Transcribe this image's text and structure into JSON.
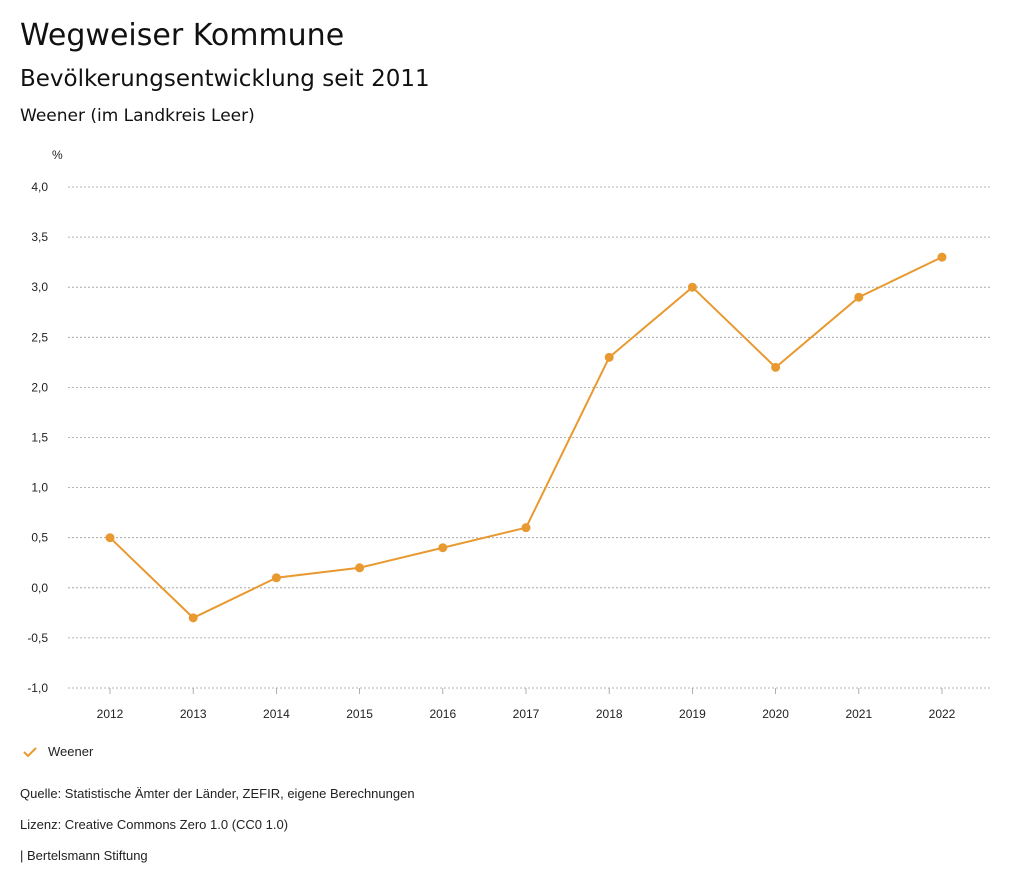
{
  "header": {
    "title": "Wegweiser Kommune",
    "subtitle": "Bevölkerungsentwicklung seit 2011",
    "region": "Weener (im Landkreis Leer)"
  },
  "chart_data": {
    "type": "line",
    "ylabel": "%",
    "ylim": [
      -1.0,
      4.0
    ],
    "yticks": [
      "4,0",
      "3,5",
      "3,0",
      "2,5",
      "2,0",
      "1,5",
      "1,0",
      "0,5",
      "0,0",
      "-0,5",
      "-1,0"
    ],
    "x": [
      "2012",
      "2013",
      "2014",
      "2015",
      "2016",
      "2017",
      "2018",
      "2019",
      "2020",
      "2021",
      "2022"
    ],
    "series": [
      {
        "name": "Weener",
        "color": "#e8992f",
        "values": [
          0.5,
          -0.3,
          0.1,
          0.2,
          0.4,
          0.6,
          2.3,
          3.0,
          2.2,
          2.9,
          3.3
        ]
      }
    ],
    "grid": true,
    "legend": "bottom-left"
  },
  "footer": {
    "source": "Quelle: Statistische Ämter der Länder, ZEFIR, eigene Berechnungen",
    "license": "Lizenz: Creative Commons Zero 1.0 (CC0 1.0)",
    "brand": "| Bertelsmann Stiftung"
  }
}
